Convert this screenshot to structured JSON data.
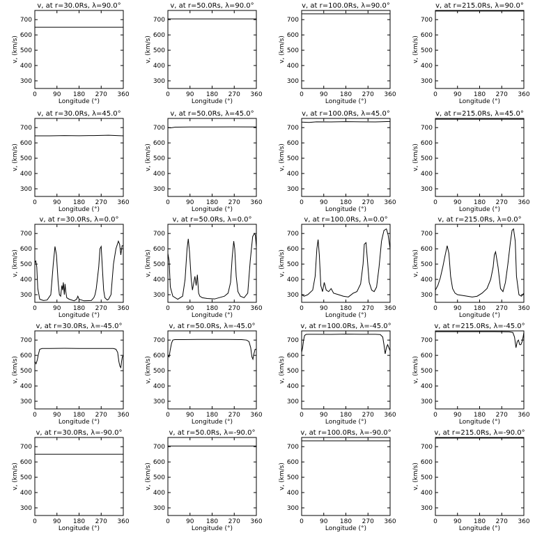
{
  "figure": {
    "background": "#ffffff",
    "line_color": "#000000"
  },
  "chart_data": [
    {
      "type": "line",
      "title": "v, at r=30.0Rs, λ=90.0°",
      "xlabel": "Longitude (°)",
      "ylabel": "v, (km/s)",
      "xlim": [
        0,
        360
      ],
      "ylim": [
        250,
        760
      ],
      "xticks": [
        0,
        90,
        180,
        270,
        360
      ],
      "yticks": [
        300,
        400,
        500,
        600,
        700
      ],
      "series": [
        {
          "x": [
            0,
            360
          ],
          "y": [
            650,
            650
          ]
        }
      ]
    },
    {
      "type": "line",
      "title": "v, at r=50.0Rs, λ=90.0°",
      "xlabel": "Longitude (°)",
      "ylabel": "v, (km/s)",
      "xlim": [
        0,
        360
      ],
      "ylim": [
        250,
        760
      ],
      "xticks": [
        0,
        90,
        180,
        270,
        360
      ],
      "yticks": [
        300,
        400,
        500,
        600,
        700
      ],
      "series": [
        {
          "x": [
            0,
            360
          ],
          "y": [
            705,
            705
          ]
        }
      ]
    },
    {
      "type": "line",
      "title": "v, at r=100.0Rs, λ=90.0°",
      "xlabel": "Longitude (°)",
      "ylabel": "v, (km/s)",
      "xlim": [
        0,
        360
      ],
      "ylim": [
        250,
        760
      ],
      "xticks": [
        0,
        90,
        180,
        270,
        360
      ],
      "yticks": [
        300,
        400,
        500,
        600,
        700
      ],
      "series": [
        {
          "x": [
            0,
            360
          ],
          "y": [
            738,
            738
          ]
        }
      ]
    },
    {
      "type": "line",
      "title": "v, at r=215.0Rs, λ=90.0°",
      "xlabel": "Longitude (°)",
      "ylabel": "v, (km/s)",
      "xlim": [
        0,
        360
      ],
      "ylim": [
        250,
        760
      ],
      "xticks": [
        0,
        90,
        180,
        270,
        360
      ],
      "yticks": [
        300,
        400,
        500,
        600,
        700
      ],
      "series": [
        {
          "x": [
            0,
            360
          ],
          "y": [
            756,
            756
          ]
        }
      ]
    },
    {
      "type": "line",
      "title": "v, at r=30.0Rs, λ=45.0°",
      "xlabel": "Longitude (°)",
      "ylabel": "v, (km/s)",
      "xlim": [
        0,
        360
      ],
      "ylim": [
        250,
        760
      ],
      "xticks": [
        0,
        90,
        180,
        270,
        360
      ],
      "yticks": [
        300,
        400,
        500,
        600,
        700
      ],
      "series": [
        {
          "x": [
            0,
            60,
            120,
            180,
            240,
            300,
            360
          ],
          "y": [
            646,
            646,
            648,
            647,
            648,
            650,
            646
          ]
        }
      ]
    },
    {
      "type": "line",
      "title": "v, at r=50.0Rs, λ=45.0°",
      "xlabel": "Longitude (°)",
      "ylabel": "v, (km/s)",
      "xlim": [
        0,
        360
      ],
      "ylim": [
        250,
        760
      ],
      "xticks": [
        0,
        90,
        180,
        270,
        360
      ],
      "yticks": [
        300,
        400,
        500,
        600,
        700
      ],
      "series": [
        {
          "x": [
            0,
            10,
            30,
            90,
            180,
            270,
            360
          ],
          "y": [
            700,
            698,
            703,
            704,
            704,
            705,
            704
          ]
        }
      ]
    },
    {
      "type": "line",
      "title": "v, at r=100.0Rs, λ=45.0°",
      "xlabel": "Longitude (°)",
      "ylabel": "v, (km/s)",
      "xlim": [
        0,
        360
      ],
      "ylim": [
        250,
        760
      ],
      "xticks": [
        0,
        90,
        180,
        270,
        360
      ],
      "yticks": [
        300,
        400,
        500,
        600,
        700
      ],
      "series": [
        {
          "x": [
            0,
            30,
            60,
            120,
            180,
            240,
            300,
            360
          ],
          "y": [
            736,
            734,
            738,
            737,
            739,
            738,
            737,
            740
          ]
        }
      ]
    },
    {
      "type": "line",
      "title": "v, at r=215.0Rs, λ=45.0°",
      "xlabel": "Longitude (°)",
      "ylabel": "v, (km/s)",
      "xlim": [
        0,
        360
      ],
      "ylim": [
        250,
        760
      ],
      "xticks": [
        0,
        90,
        180,
        270,
        360
      ],
      "yticks": [
        300,
        400,
        500,
        600,
        700
      ],
      "series": [
        {
          "x": [
            0,
            360
          ],
          "y": [
            755,
            755
          ]
        }
      ]
    },
    {
      "type": "line",
      "title": "v, at r=30.0Rs, λ=0.0°",
      "xlabel": "Longitude (°)",
      "ylabel": "v, (km/s)",
      "xlim": [
        0,
        360
      ],
      "ylim": [
        250,
        760
      ],
      "xticks": [
        0,
        90,
        180,
        270,
        360
      ],
      "yticks": [
        300,
        400,
        500,
        600,
        700
      ],
      "series": [
        {
          "x": [
            0,
            4,
            8,
            12,
            20,
            35,
            50,
            65,
            75,
            82,
            88,
            95,
            100,
            105,
            110,
            113,
            116,
            120,
            123,
            126,
            130,
            140,
            160,
            170,
            175,
            180,
            200,
            230,
            240,
            245,
            250,
            260,
            265,
            270,
            275,
            280,
            285,
            295,
            300,
            310,
            320,
            330,
            340,
            345,
            350,
            355,
            360
          ],
          "y": [
            510,
            520,
            480,
            340,
            270,
            262,
            265,
            300,
            500,
            615,
            560,
            380,
            300,
            290,
            360,
            330,
            380,
            300,
            370,
            320,
            280,
            270,
            260,
            270,
            290,
            270,
            260,
            262,
            280,
            300,
            340,
            480,
            600,
            615,
            470,
            330,
            280,
            265,
            270,
            300,
            500,
            600,
            650,
            630,
            560,
            620,
            620
          ]
        }
      ]
    },
    {
      "type": "line",
      "title": "v, at r=50.0Rs, λ=0.0°",
      "xlabel": "Longitude (°)",
      "ylabel": "v, (km/s)",
      "xlim": [
        0,
        360
      ],
      "ylim": [
        250,
        760
      ],
      "xticks": [
        0,
        90,
        180,
        270,
        360
      ],
      "yticks": [
        300,
        400,
        500,
        600,
        700
      ],
      "series": [
        {
          "x": [
            0,
            5,
            10,
            20,
            40,
            60,
            70,
            78,
            83,
            88,
            95,
            100,
            110,
            115,
            120,
            125,
            130,
            140,
            160,
            190,
            230,
            245,
            255,
            262,
            268,
            272,
            278,
            285,
            295,
            310,
            325,
            335,
            345,
            352,
            356,
            360
          ],
          "y": [
            570,
            520,
            350,
            290,
            270,
            290,
            400,
            600,
            665,
            580,
            400,
            330,
            420,
            360,
            430,
            310,
            290,
            280,
            275,
            272,
            290,
            310,
            380,
            550,
            650,
            600,
            420,
            320,
            290,
            280,
            310,
            520,
            680,
            700,
            690,
            610
          ]
        }
      ]
    },
    {
      "type": "line",
      "title": "v, at r=100.0Rs, λ=0.0°",
      "xlabel": "Longitude (°)",
      "ylabel": "v, (km/s)",
      "xlim": [
        0,
        360
      ],
      "ylim": [
        250,
        760
      ],
      "xticks": [
        0,
        90,
        180,
        270,
        360
      ],
      "yticks": [
        300,
        400,
        500,
        600,
        700
      ],
      "series": [
        {
          "x": [
            0,
            10,
            25,
            45,
            55,
            62,
            67,
            72,
            78,
            85,
            92,
            100,
            110,
            120,
            130,
            150,
            170,
            190,
            210,
            225,
            240,
            250,
            255,
            262,
            268,
            275,
            285,
            295,
            305,
            315,
            325,
            335,
            345,
            352,
            360
          ],
          "y": [
            300,
            290,
            300,
            330,
            420,
            600,
            660,
            560,
            360,
            320,
            380,
            330,
            320,
            340,
            310,
            300,
            290,
            285,
            310,
            320,
            370,
            500,
            630,
            640,
            520,
            380,
            330,
            320,
            350,
            480,
            650,
            720,
            730,
            690,
            600
          ]
        }
      ]
    },
    {
      "type": "line",
      "title": "v, at r=215.0Rs, λ=0.0°",
      "xlabel": "Longitude (°)",
      "ylabel": "v, (km/s)",
      "xlim": [
        0,
        360
      ],
      "ylim": [
        250,
        760
      ],
      "xticks": [
        0,
        90,
        180,
        270,
        360
      ],
      "yticks": [
        300,
        400,
        500,
        600,
        700
      ],
      "series": [
        {
          "x": [
            0,
            10,
            20,
            30,
            40,
            48,
            55,
            62,
            70,
            80,
            90,
            110,
            130,
            150,
            170,
            190,
            210,
            225,
            235,
            240,
            245,
            255,
            265,
            275,
            285,
            295,
            305,
            312,
            318,
            325,
            330,
            340,
            350,
            360
          ],
          "y": [
            330,
            360,
            410,
            480,
            560,
            620,
            570,
            420,
            340,
            310,
            300,
            295,
            290,
            285,
            290,
            310,
            340,
            400,
            480,
            560,
            580,
            480,
            340,
            320,
            380,
            500,
            640,
            720,
            730,
            650,
            420,
            300,
            290,
            310
          ]
        }
      ]
    },
    {
      "type": "line",
      "title": "v, at r=30.0Rs, λ=-45.0°",
      "xlabel": "Longitude (°)",
      "ylabel": "v, (km/s)",
      "xlim": [
        0,
        360
      ],
      "ylim": [
        250,
        760
      ],
      "xticks": [
        0,
        90,
        180,
        270,
        360
      ],
      "yticks": [
        300,
        400,
        500,
        600,
        700
      ],
      "series": [
        {
          "x": [
            0,
            5,
            10,
            15,
            20,
            30,
            60,
            120,
            180,
            240,
            300,
            320,
            330,
            337,
            342,
            346,
            350,
            353,
            356,
            360
          ],
          "y": [
            560,
            545,
            570,
            610,
            640,
            645,
            645,
            646,
            645,
            645,
            645,
            645,
            640,
            620,
            560,
            530,
            520,
            560,
            590,
            600
          ]
        }
      ]
    },
    {
      "type": "line",
      "title": "v, at r=50.0Rs, λ=-45.0°",
      "xlabel": "Longitude (°)",
      "ylabel": "v, (km/s)",
      "xlim": [
        0,
        360
      ],
      "ylim": [
        250,
        760
      ],
      "xticks": [
        0,
        90,
        180,
        270,
        360
      ],
      "yticks": [
        300,
        400,
        500,
        600,
        700
      ],
      "series": [
        {
          "x": [
            0,
            5,
            10,
            15,
            20,
            28,
            60,
            120,
            180,
            240,
            300,
            320,
            330,
            337,
            342,
            346,
            350,
            355,
            360
          ],
          "y": [
            600,
            590,
            640,
            680,
            700,
            703,
            703,
            704,
            704,
            704,
            703,
            700,
            690,
            650,
            590,
            575,
            610,
            640,
            640
          ]
        }
      ]
    },
    {
      "type": "line",
      "title": "v, at r=100.0Rs, λ=-45.0°",
      "xlabel": "Longitude (°)",
      "ylabel": "v, (km/s)",
      "xlim": [
        0,
        360
      ],
      "ylim": [
        250,
        760
      ],
      "xticks": [
        0,
        90,
        180,
        270,
        360
      ],
      "yticks": [
        300,
        400,
        500,
        600,
        700
      ],
      "series": [
        {
          "x": [
            0,
            4,
            8,
            12,
            18,
            30,
            60,
            120,
            180,
            240,
            300,
            320,
            330,
            335,
            340,
            345,
            350,
            355,
            360
          ],
          "y": [
            620,
            650,
            700,
            730,
            737,
            738,
            738,
            737,
            739,
            738,
            738,
            736,
            720,
            670,
            610,
            650,
            670,
            650,
            630
          ]
        }
      ]
    },
    {
      "type": "line",
      "title": "v, at r=215.0Rs, λ=-45.0°",
      "xlabel": "Longitude (°)",
      "ylabel": "v, (km/s)",
      "xlim": [
        0,
        360
      ],
      "ylim": [
        250,
        760
      ],
      "xticks": [
        0,
        90,
        180,
        270,
        360
      ],
      "yticks": [
        300,
        400,
        500,
        600,
        700
      ],
      "series": [
        {
          "x": [
            0,
            60,
            120,
            180,
            240,
            300,
            315,
            322,
            328,
            333,
            338,
            343,
            348,
            353,
            357,
            360
          ],
          "y": [
            755,
            755,
            755,
            755,
            755,
            754,
            750,
            720,
            650,
            690,
            700,
            670,
            670,
            690,
            720,
            750
          ]
        }
      ]
    },
    {
      "type": "line",
      "title": "v, at r=30.0Rs, λ=-90.0°",
      "xlabel": "Longitude (°)",
      "ylabel": "v, (km/s)",
      "xlim": [
        0,
        360
      ],
      "ylim": [
        250,
        760
      ],
      "xticks": [
        0,
        90,
        180,
        270,
        360
      ],
      "yticks": [
        300,
        400,
        500,
        600,
        700
      ],
      "series": [
        {
          "x": [
            0,
            360
          ],
          "y": [
            650,
            650
          ]
        }
      ]
    },
    {
      "type": "line",
      "title": "v, at r=50.0Rs, λ=-90.0°",
      "xlabel": "Longitude (°)",
      "ylabel": "v, (km/s)",
      "xlim": [
        0,
        360
      ],
      "ylim": [
        250,
        760
      ],
      "xticks": [
        0,
        90,
        180,
        270,
        360
      ],
      "yticks": [
        300,
        400,
        500,
        600,
        700
      ],
      "series": [
        {
          "x": [
            0,
            360
          ],
          "y": [
            704,
            704
          ]
        }
      ]
    },
    {
      "type": "line",
      "title": "v, at r=100.0Rs, λ=-90.0°",
      "xlabel": "Longitude (°)",
      "ylabel": "v, (km/s)",
      "xlim": [
        0,
        360
      ],
      "ylim": [
        250,
        760
      ],
      "xticks": [
        0,
        90,
        180,
        270,
        360
      ],
      "yticks": [
        300,
        400,
        500,
        600,
        700
      ],
      "series": [
        {
          "x": [
            0,
            360
          ],
          "y": [
            738,
            738
          ]
        }
      ]
    },
    {
      "type": "line",
      "title": "v, at r=215.0Rs, λ=-90.0°",
      "xlabel": "Longitude (°)",
      "ylabel": "v, (km/s)",
      "xlim": [
        0,
        360
      ],
      "ylim": [
        250,
        760
      ],
      "xticks": [
        0,
        90,
        180,
        270,
        360
      ],
      "yticks": [
        300,
        400,
        500,
        600,
        700
      ],
      "series": [
        {
          "x": [
            0,
            360
          ],
          "y": [
            756,
            756
          ]
        }
      ]
    }
  ]
}
